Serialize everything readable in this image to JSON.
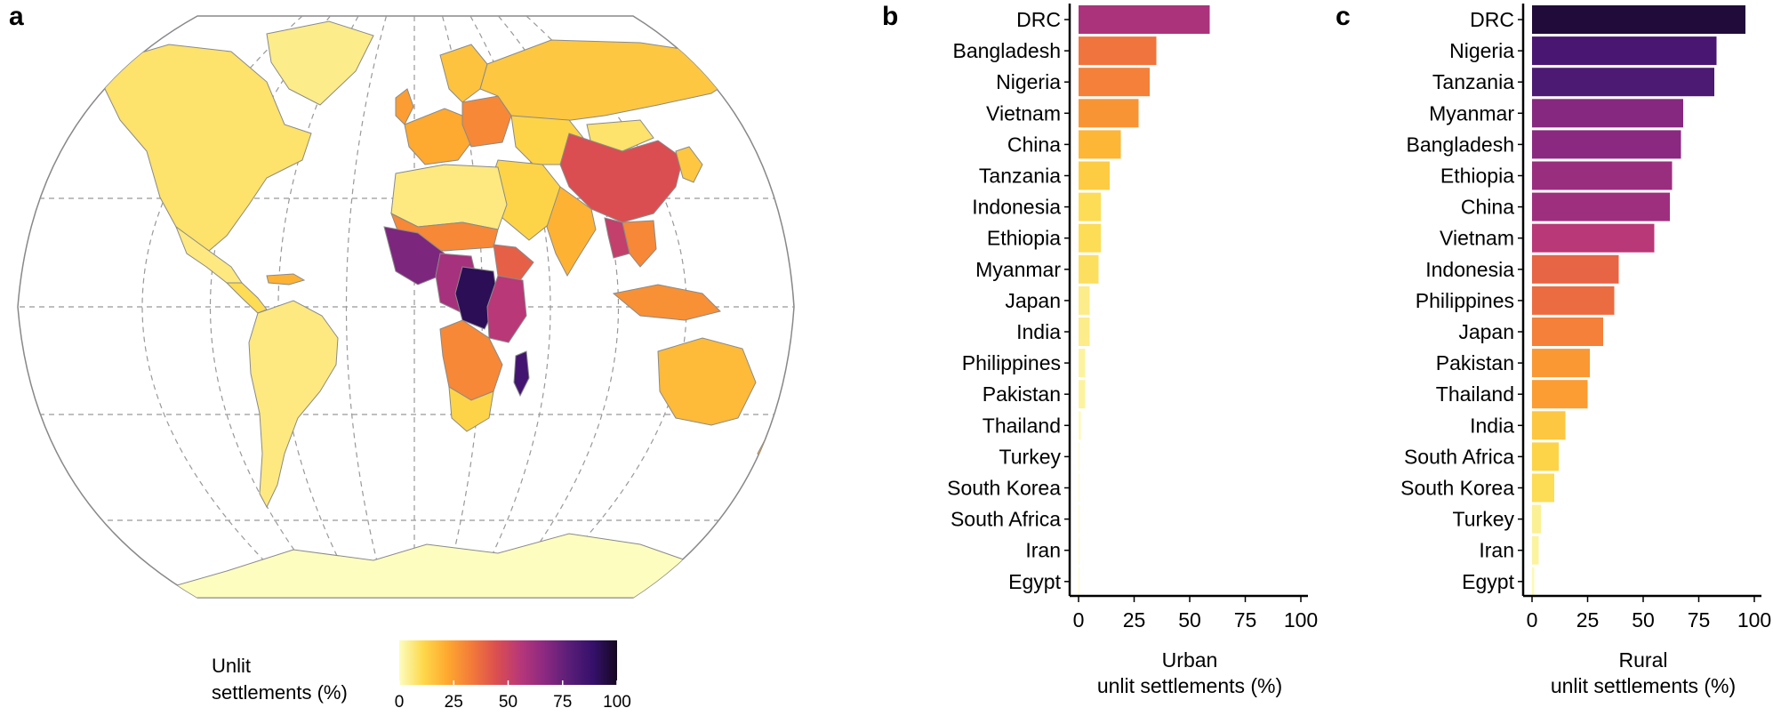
{
  "panel_labels": {
    "a": "a",
    "b": "b",
    "c": "c"
  },
  "legend": {
    "title_line1": "Unlit",
    "title_line2": "settlements (%)",
    "ticks": [
      "0",
      "25",
      "50",
      "75",
      "100"
    ],
    "scale": [
      0,
      100
    ]
  },
  "palette_stops": [
    "#fcfdbf",
    "#fdd84a",
    "#fea82f",
    "#f37a3a",
    "#dc4f4f",
    "#b73779",
    "#8c2981",
    "#5a1e78",
    "#36106b",
    "#14081f"
  ],
  "map_fills": {
    "north_america": 8,
    "greenland": 5,
    "mexico": 6,
    "central_america": 10,
    "south_america": 6,
    "caribbean": 20,
    "western_europe": 22,
    "eastern_europe": 30,
    "scandinavia": 16,
    "uk": 25,
    "russia": 15,
    "middle_east": 12,
    "central_asia": 12,
    "china": 45,
    "india": 20,
    "southeast_asia": 30,
    "myanmar": 52,
    "japan_korea": 15,
    "indonesia": 28,
    "australia": 18,
    "new_zealand": 25,
    "mongolia": 8,
    "north_africa": 6,
    "sahel": 30,
    "west_africa": 70,
    "central_africa": 60,
    "drc": 92,
    "east_africa": 55,
    "ethiopia": 40,
    "southern_africa": 30,
    "south_africa": 12,
    "madagascar": 85,
    "antarctica": 0
  },
  "chart_data": [
    {
      "type": "bar",
      "orientation": "horizontal",
      "xlabel": "Urban\nunlit settlements (%)",
      "xlim": [
        0,
        100
      ],
      "xticks": [
        0,
        25,
        50,
        75,
        100
      ],
      "categories": [
        "DRC",
        "Bangladesh",
        "Nigeria",
        "Vietnam",
        "China",
        "Tanzania",
        "Indonesia",
        "Ethiopia",
        "Myanmar",
        "Japan",
        "India",
        "Philippines",
        "Pakistan",
        "Thailand",
        "Turkey",
        "South Korea",
        "South Africa",
        "Iran",
        "Egypt"
      ],
      "values": [
        59,
        35,
        32,
        27,
        19,
        14,
        10,
        10,
        9,
        5,
        5,
        3,
        3,
        1,
        0.3,
        0.3,
        0.3,
        0.3,
        0.3
      ]
    },
    {
      "type": "bar",
      "orientation": "horizontal",
      "xlabel": "Rural\nunlit settlements (%)",
      "xlim": [
        0,
        100
      ],
      "xticks": [
        0,
        25,
        50,
        75,
        100
      ],
      "categories": [
        "DRC",
        "Nigeria",
        "Tanzania",
        "Myanmar",
        "Bangladesh",
        "Ethiopia",
        "China",
        "Vietnam",
        "Indonesia",
        "Philippines",
        "Japan",
        "Pakistan",
        "Thailand",
        "India",
        "South Africa",
        "South Korea",
        "Turkey",
        "Iran",
        "Egypt"
      ],
      "values": [
        96,
        83,
        82,
        68,
        67,
        63,
        62,
        55,
        39,
        37,
        32,
        26,
        25,
        15,
        12,
        10,
        4,
        3,
        1
      ]
    }
  ]
}
